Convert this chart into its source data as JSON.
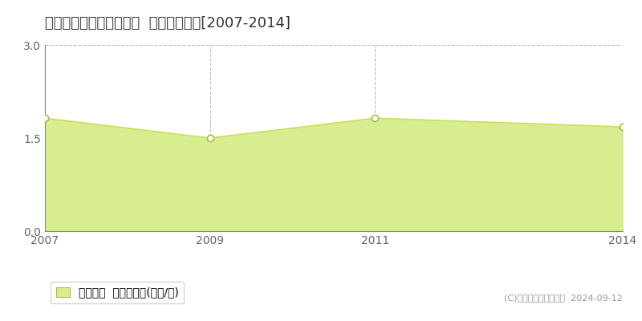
{
  "title": "西津軽郡深浦町北金ケ沢  土地価格推移[2007-2014]",
  "years": [
    2007,
    2009,
    2011,
    2014
  ],
  "values": [
    1.82,
    1.5,
    1.82,
    1.68
  ],
  "ylim": [
    0,
    3
  ],
  "yticks": [
    0,
    1.5,
    3
  ],
  "xticks": [
    2007,
    2009,
    2011,
    2014
  ],
  "xlim": [
    2007,
    2014
  ],
  "line_color": "#c8e05a",
  "fill_color": "#d8ed90",
  "marker_color": "#ffffff",
  "marker_edge_color": "#aabb50",
  "grid_color": "#bbbbbb",
  "vline_years": [
    2009,
    2011
  ],
  "bg_color": "#ffffff",
  "legend_label": "土地価格  平均坪単価(万円/坪)",
  "copyright_text": "(C)土地価格ドットコム  2024-09-12",
  "title_fontsize": 13,
  "tick_fontsize": 10,
  "legend_fontsize": 10
}
